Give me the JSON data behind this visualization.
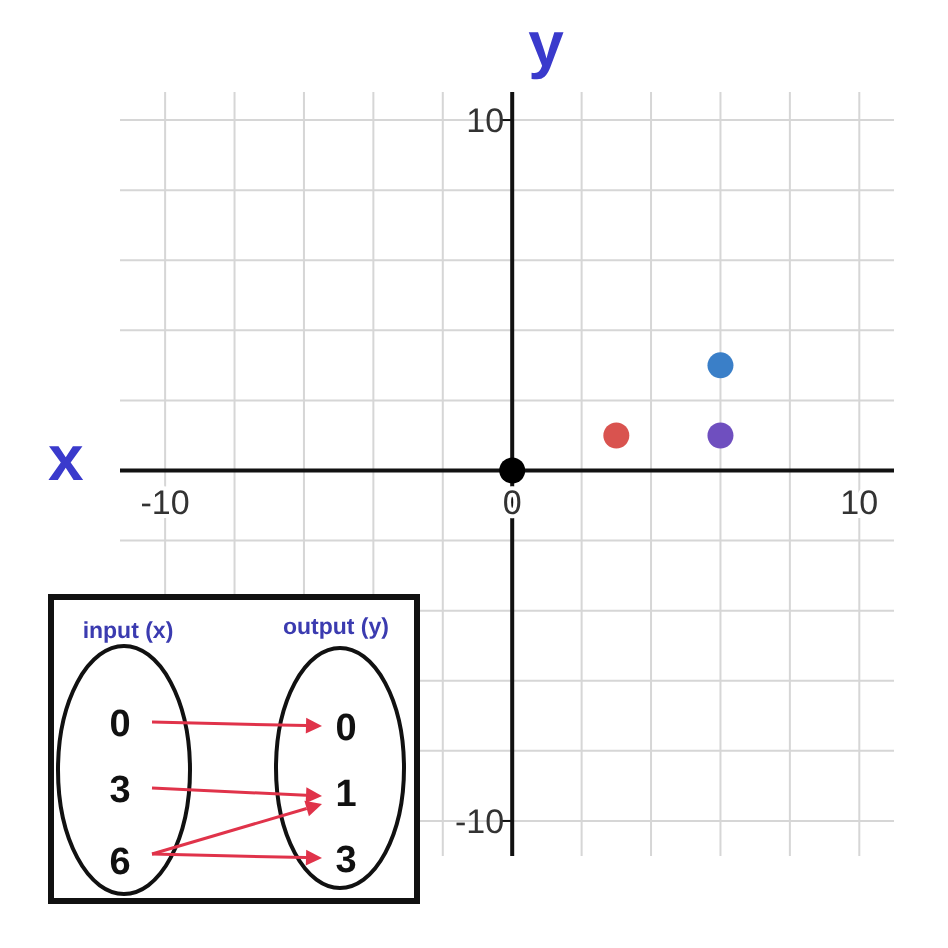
{
  "chart_data": {
    "type": "scatter",
    "xlabel": "x",
    "ylabel": "y",
    "x": [
      0,
      3,
      6,
      6
    ],
    "values": [
      0,
      1,
      1,
      3
    ],
    "colors": [
      "#000000",
      "#d9534f",
      "#6f4fbf",
      "#3a7fc8"
    ],
    "marker": "circle",
    "xlim": [
      -11.3,
      11
    ],
    "ylim": [
      -11,
      10.8
    ],
    "xticks": [
      -10,
      {
        "value": -8,
        "label": null
      },
      {
        "value": -6,
        "label": null
      },
      {
        "value": -4,
        "label": null
      },
      {
        "value": -2,
        "label": null
      },
      0,
      {
        "value": 2,
        "label": null
      },
      {
        "value": 4,
        "label": null
      },
      {
        "value": 6,
        "label": null
      },
      {
        "value": 8,
        "label": null
      },
      10
    ],
    "yticks": [
      -10,
      {
        "value": -8,
        "label": null
      },
      {
        "value": -6,
        "label": null
      },
      {
        "value": -4,
        "label": null
      },
      {
        "value": -2,
        "label": null
      },
      {
        "value": 0,
        "label": null
      },
      {
        "value": 2,
        "label": null
      },
      {
        "value": 4,
        "label": null
      },
      {
        "value": 6,
        "label": null
      },
      {
        "value": 8,
        "label": null
      },
      10
    ],
    "grid": true,
    "annotations": [
      "input (x)",
      "output (y)",
      "0",
      "3",
      "6",
      "0",
      "1",
      "3"
    ]
  }
}
